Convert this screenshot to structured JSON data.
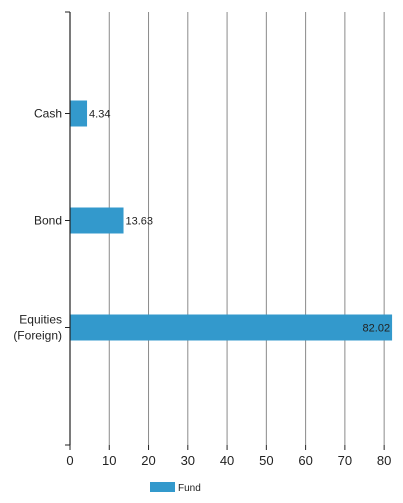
{
  "chart_data": {
    "type": "bar",
    "orientation": "horizontal",
    "categories": [
      "Cash",
      "Bond",
      "Equities (Foreign)"
    ],
    "category_lines": [
      [
        "Cash"
      ],
      [
        "Bond"
      ],
      [
        "Equities",
        "(Foreign)"
      ]
    ],
    "series": [
      {
        "name": "Fund",
        "values": [
          4.34,
          13.63,
          82.02
        ],
        "color": "#3399cc"
      }
    ],
    "xlim": [
      0,
      82
    ],
    "xticks": [
      0,
      10,
      20,
      30,
      40,
      50,
      60,
      70,
      80
    ],
    "grid": true,
    "legend_position": "bottom-center"
  }
}
